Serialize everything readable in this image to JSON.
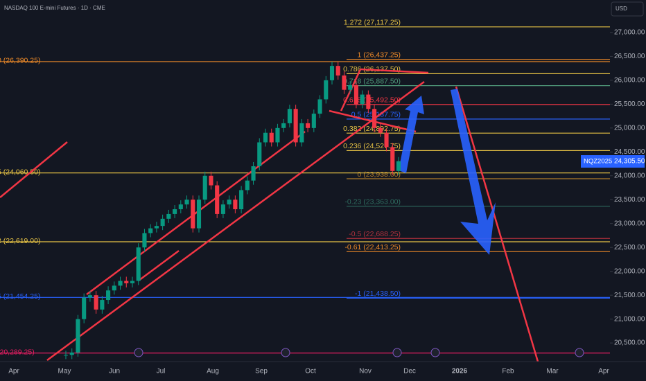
{
  "chart_data": {
    "type": "candlestick",
    "title": "NASDAQ 100 E-mini Futures · 1D · CME",
    "currency": "USD",
    "symbol": "NQZ2025",
    "last_price": {
      "value": 24305.5,
      "label": "24,305.50"
    },
    "up_color": "#089981",
    "down_color": "#f23645",
    "months": [
      "Apr",
      "May",
      "Jun",
      "Jul",
      "Aug",
      "Sep",
      "Oct",
      "Nov",
      "Dec",
      "2026",
      "Feb",
      "Mar",
      "Apr"
    ],
    "values": [
      20250,
      20300,
      21000,
      21450,
      21500,
      21200,
      21400,
      21600,
      21700,
      21800,
      21750,
      21800,
      22500,
      22800,
      22900,
      22950,
      23100,
      23200,
      23300,
      23400,
      23500,
      22900,
      23500,
      24000,
      23800,
      23200,
      23400,
      23500,
      23300,
      23700,
      23900,
      24200,
      24700,
      24900,
      24700,
      25000,
      25100,
      25400,
      24700,
      25100,
      25000,
      25300,
      25600,
      26000,
      26300,
      26100,
      25800,
      25900,
      25500,
      25700,
      25400,
      25000,
      24900,
      24600,
      24100,
      24305.5
    ],
    "ylim": [
      20110,
      27680
    ],
    "yticks": [
      {
        "value": 27000,
        "label": "27,000.00"
      },
      {
        "value": 26500,
        "label": "26,500.00"
      },
      {
        "value": 26000,
        "label": "26,000.00"
      },
      {
        "value": 25500,
        "label": "25,500.00"
      },
      {
        "value": 25000,
        "label": "25,000.00"
      },
      {
        "value": 24500,
        "label": "24,500.00"
      },
      {
        "value": 24000,
        "label": "24,000.00"
      },
      {
        "value": 23500,
        "label": "23,500.00"
      },
      {
        "value": 23000,
        "label": "23,000.00"
      },
      {
        "value": 22500,
        "label": "22,500.00"
      },
      {
        "value": 22000,
        "label": "22,000.00"
      },
      {
        "value": 21500,
        "label": "21,500.00"
      },
      {
        "value": 21000,
        "label": "21,000.00"
      },
      {
        "value": 20500,
        "label": "20,500.00"
      }
    ],
    "levels": [
      {
        "label": "1.272 (27,117.25)",
        "value": 27117.25,
        "color": "#e6c245",
        "side": "right"
      },
      {
        "label": "1 (26,437.25)",
        "value": 26437.25,
        "color": "#f28c28",
        "side": "right"
      },
      {
        "label": "0.786 (26,137.50)",
        "value": 26137.5,
        "color": "#e6c245",
        "side": "right"
      },
      {
        "label": "0.718 (25,887.50)",
        "value": 25887.5,
        "color": "#4f9a7a",
        "side": "right"
      },
      {
        "label": "0.618 (25,492.50)",
        "value": 25492.5,
        "color": "#f23645",
        "side": "right"
      },
      {
        "label": "0.5 (25,187.75)",
        "value": 25187.75,
        "color": "#2962ff",
        "side": "right"
      },
      {
        "label": "0.382 (24,892.75)",
        "value": 24892.75,
        "color": "#e6c245",
        "side": "right"
      },
      {
        "label": "0.236 (24,527.75)",
        "value": 24527.75,
        "color": "#e6c245",
        "side": "right"
      },
      {
        "label": "0 (23,938.00)",
        "value": 23938,
        "color": "#b07b2a",
        "side": "right"
      },
      {
        "label": "-0.23 (23,363.00)",
        "value": 23363,
        "color": "#2e6b5e",
        "side": "right"
      },
      {
        "label": "-0.5 (22,688.25)",
        "value": 22688.25,
        "color": "#b3313d",
        "side": "right"
      },
      {
        "label": "-0.61 (22,413.25)",
        "value": 22413.25,
        "color": "#f28c28",
        "side": "right"
      },
      {
        "label": "-1 (21,438.50)",
        "value": 21438.5,
        "color": "#2962ff",
        "side": "right"
      },
      {
        "label": "0 (26,390.25)",
        "value": 26390.25,
        "color": "#f28c28",
        "side": "left"
      },
      {
        "label": "5 (24,060.50)",
        "value": 24060.5,
        "color": "#e6c245",
        "side": "left"
      },
      {
        "label": "2 (22,619.00)",
        "value": 22619,
        "color": "#e6c245",
        "side": "left"
      },
      {
        "label": "5 (21,454.25)",
        "value": 21454.25,
        "color": "#2962ff",
        "side": "left"
      },
      {
        "label": "(20,289.25)",
        "value": 20289.25,
        "color": "#e91e63",
        "side": "left"
      }
    ]
  }
}
